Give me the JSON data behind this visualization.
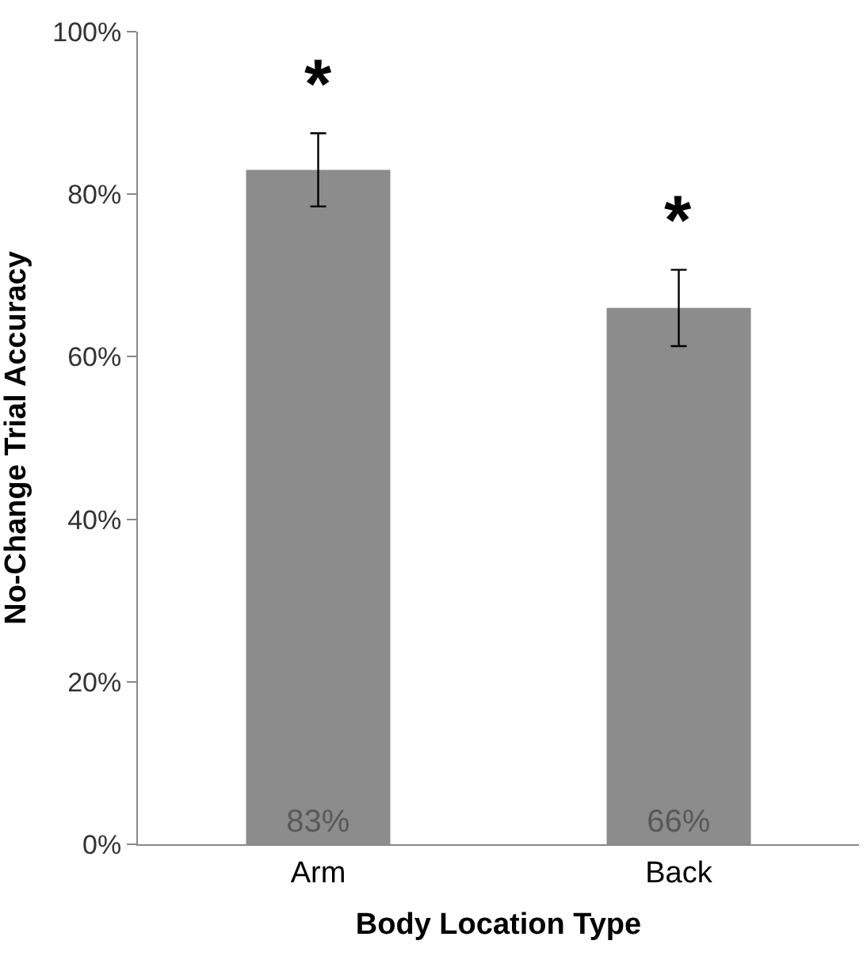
{
  "chart_data": {
    "type": "bar",
    "xlabel": "Body Location Type",
    "ylabel": "No-Change Trial Accuracy",
    "categories": [
      "Arm",
      "Back"
    ],
    "values": [
      83,
      66
    ],
    "errors": [
      4.5,
      4.7
    ],
    "value_labels": [
      "83%",
      "66%"
    ],
    "color": "#8c8c8c",
    "ylim": [
      0,
      100
    ],
    "yticks": [
      {
        "value": 0,
        "label": "0%"
      },
      {
        "value": 20,
        "label": "20%"
      },
      {
        "value": 40,
        "label": "40%"
      },
      {
        "value": 60,
        "label": "60%"
      },
      {
        "value": 80,
        "label": "80%"
      },
      {
        "value": 100,
        "label": "100%"
      }
    ],
    "annotations": [
      "*",
      "*"
    ]
  }
}
